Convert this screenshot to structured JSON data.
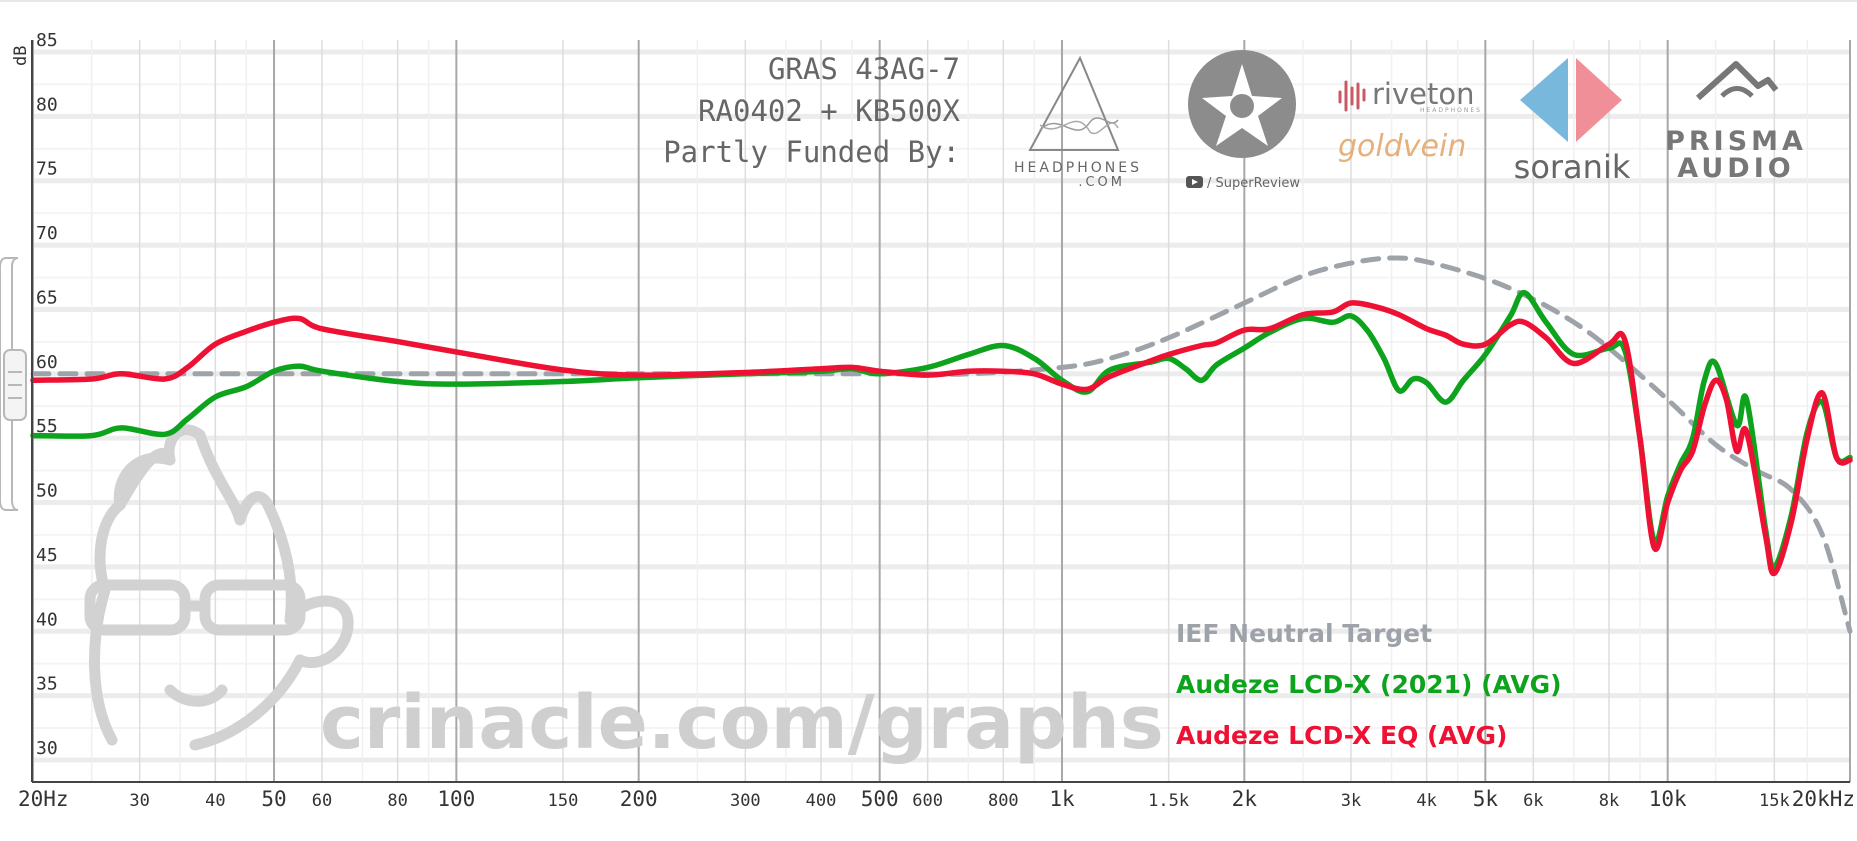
{
  "chart_data": {
    "type": "line",
    "x_scale": "log",
    "xlim": [
      20,
      20000
    ],
    "ylim": [
      30,
      85
    ],
    "ylabel": "dB",
    "y_ticks": [
      30,
      35,
      40,
      45,
      50,
      55,
      60,
      65,
      70,
      75,
      80,
      85
    ],
    "x_ticks": [
      {
        "value": 20,
        "label": "20Hz",
        "major": true
      },
      {
        "value": 30,
        "label": "30",
        "major": false
      },
      {
        "value": 40,
        "label": "40",
        "major": false
      },
      {
        "value": 50,
        "label": "50",
        "major": true
      },
      {
        "value": 60,
        "label": "60",
        "major": false
      },
      {
        "value": 80,
        "label": "80",
        "major": false
      },
      {
        "value": 100,
        "label": "100",
        "major": true
      },
      {
        "value": 150,
        "label": "150",
        "major": false
      },
      {
        "value": 200,
        "label": "200",
        "major": true
      },
      {
        "value": 300,
        "label": "300",
        "major": false
      },
      {
        "value": 400,
        "label": "400",
        "major": false
      },
      {
        "value": 500,
        "label": "500",
        "major": true
      },
      {
        "value": 600,
        "label": "600",
        "major": false
      },
      {
        "value": 800,
        "label": "800",
        "major": false
      },
      {
        "value": 1000,
        "label": "1k",
        "major": true
      },
      {
        "value": 1500,
        "label": "1.5k",
        "major": false
      },
      {
        "value": 2000,
        "label": "2k",
        "major": true
      },
      {
        "value": 3000,
        "label": "3k",
        "major": false
      },
      {
        "value": 4000,
        "label": "4k",
        "major": false
      },
      {
        "value": 5000,
        "label": "5k",
        "major": true
      },
      {
        "value": 6000,
        "label": "6k",
        "major": false
      },
      {
        "value": 8000,
        "label": "8k",
        "major": false
      },
      {
        "value": 10000,
        "label": "10k",
        "major": true
      },
      {
        "value": 15000,
        "label": "15k",
        "major": false
      },
      {
        "value": 20000,
        "label": "20kHz",
        "major": true
      }
    ],
    "header_lines": [
      "GRAS 43AG-7",
      "RA0402 + KB500X",
      "Partly Funded By:"
    ],
    "watermark": "crinacle.com/graphs",
    "series": [
      {
        "name": "IEF Neutral Target",
        "color": "#9ea3aa",
        "dashed": true,
        "points": [
          [
            20,
            60.0
          ],
          [
            100,
            60.0
          ],
          [
            500,
            60.0
          ],
          [
            700,
            60.0
          ],
          [
            1000,
            60.5
          ],
          [
            1200,
            61.2
          ],
          [
            1500,
            62.8
          ],
          [
            2000,
            65.5
          ],
          [
            2500,
            67.6
          ],
          [
            3000,
            68.6
          ],
          [
            3500,
            69.0
          ],
          [
            4000,
            68.7
          ],
          [
            5000,
            67.4
          ],
          [
            6000,
            65.8
          ],
          [
            7000,
            64.0
          ],
          [
            8000,
            62.0
          ],
          [
            10000,
            58.0
          ],
          [
            12000,
            54.5
          ],
          [
            14000,
            52.5
          ],
          [
            16000,
            51.0
          ],
          [
            18000,
            47.5
          ],
          [
            20000,
            40.0
          ]
        ]
      },
      {
        "name": "Audeze LCD-X (2021) (AVG)",
        "color": "#0ea31d",
        "dashed": false,
        "points": [
          [
            20,
            55.2
          ],
          [
            25,
            55.2
          ],
          [
            28,
            55.8
          ],
          [
            33,
            55.3
          ],
          [
            36,
            56.5
          ],
          [
            40,
            58.2
          ],
          [
            45,
            59.0
          ],
          [
            50,
            60.2
          ],
          [
            55,
            60.6
          ],
          [
            60,
            60.2
          ],
          [
            80,
            59.4
          ],
          [
            100,
            59.2
          ],
          [
            150,
            59.4
          ],
          [
            200,
            59.7
          ],
          [
            300,
            60.0
          ],
          [
            400,
            60.2
          ],
          [
            450,
            60.4
          ],
          [
            500,
            60.0
          ],
          [
            600,
            60.5
          ],
          [
            700,
            61.5
          ],
          [
            800,
            62.2
          ],
          [
            900,
            61.2
          ],
          [
            1000,
            59.5
          ],
          [
            1100,
            58.6
          ],
          [
            1200,
            60.3
          ],
          [
            1400,
            60.9
          ],
          [
            1500,
            61.2
          ],
          [
            1600,
            60.4
          ],
          [
            1700,
            59.5
          ],
          [
            1800,
            60.7
          ],
          [
            2000,
            62.0
          ],
          [
            2200,
            63.2
          ],
          [
            2500,
            64.3
          ],
          [
            2800,
            64.0
          ],
          [
            3000,
            64.5
          ],
          [
            3200,
            63.3
          ],
          [
            3400,
            61.2
          ],
          [
            3600,
            58.7
          ],
          [
            3800,
            59.6
          ],
          [
            4000,
            59.3
          ],
          [
            4300,
            57.8
          ],
          [
            4600,
            59.5
          ],
          [
            5000,
            61.5
          ],
          [
            5500,
            64.5
          ],
          [
            5800,
            66.3
          ],
          [
            6300,
            64.0
          ],
          [
            7000,
            61.5
          ],
          [
            8000,
            62.0
          ],
          [
            8500,
            61.8
          ],
          [
            9000,
            55.0
          ],
          [
            9500,
            47.0
          ],
          [
            10000,
            50.5
          ],
          [
            10500,
            53.0
          ],
          [
            11000,
            55.0
          ],
          [
            11500,
            59.5
          ],
          [
            12000,
            60.8
          ],
          [
            13000,
            56.0
          ],
          [
            13500,
            58.0
          ],
          [
            14500,
            48.0
          ],
          [
            15000,
            45.0
          ],
          [
            16000,
            49.0
          ],
          [
            17000,
            55.5
          ],
          [
            18000,
            57.8
          ],
          [
            19000,
            53.5
          ],
          [
            20000,
            53.5
          ]
        ]
      },
      {
        "name": "Audeze LCD-X EQ (AVG)",
        "color": "#ee1133",
        "dashed": false,
        "points": [
          [
            20,
            59.5
          ],
          [
            25,
            59.6
          ],
          [
            28,
            60.0
          ],
          [
            33,
            59.6
          ],
          [
            36,
            60.5
          ],
          [
            40,
            62.3
          ],
          [
            45,
            63.3
          ],
          [
            50,
            64.0
          ],
          [
            55,
            64.3
          ],
          [
            60,
            63.5
          ],
          [
            80,
            62.5
          ],
          [
            100,
            61.7
          ],
          [
            150,
            60.3
          ],
          [
            200,
            59.9
          ],
          [
            300,
            60.1
          ],
          [
            400,
            60.4
          ],
          [
            450,
            60.5
          ],
          [
            500,
            60.2
          ],
          [
            600,
            59.9
          ],
          [
            700,
            60.2
          ],
          [
            800,
            60.2
          ],
          [
            900,
            60.0
          ],
          [
            1000,
            59.2
          ],
          [
            1100,
            58.8
          ],
          [
            1200,
            59.8
          ],
          [
            1400,
            61.0
          ],
          [
            1500,
            61.5
          ],
          [
            1700,
            62.2
          ],
          [
            1800,
            62.4
          ],
          [
            2000,
            63.4
          ],
          [
            2200,
            63.5
          ],
          [
            2500,
            64.6
          ],
          [
            2800,
            64.8
          ],
          [
            3000,
            65.5
          ],
          [
            3300,
            65.2
          ],
          [
            3600,
            64.6
          ],
          [
            4000,
            63.5
          ],
          [
            4300,
            63.0
          ],
          [
            4600,
            62.3
          ],
          [
            5000,
            62.3
          ],
          [
            5500,
            63.8
          ],
          [
            5800,
            64.0
          ],
          [
            6300,
            62.8
          ],
          [
            7000,
            60.8
          ],
          [
            8000,
            62.3
          ],
          [
            8500,
            62.6
          ],
          [
            9000,
            55.0
          ],
          [
            9500,
            46.5
          ],
          [
            10000,
            50.0
          ],
          [
            10500,
            52.5
          ],
          [
            11000,
            54.0
          ],
          [
            11500,
            57.5
          ],
          [
            12000,
            59.5
          ],
          [
            12500,
            58.0
          ],
          [
            13000,
            54.0
          ],
          [
            13500,
            55.5
          ],
          [
            14500,
            47.5
          ],
          [
            15000,
            44.5
          ],
          [
            16000,
            48.5
          ],
          [
            17000,
            55.0
          ],
          [
            18000,
            58.5
          ],
          [
            19000,
            53.5
          ],
          [
            20000,
            53.3
          ]
        ]
      }
    ]
  },
  "sponsors": {
    "headphones_line1": "HEADPHONES",
    "headphones_line2": ".COM",
    "superreview": "/ SuperReview",
    "riveton": "riveton",
    "riveton_sub": "HEADPHONES",
    "goldvein": "goldvein",
    "soranik": "soranik",
    "prisma_line1": "PRISMA",
    "prisma_line2": "AUDIO"
  }
}
